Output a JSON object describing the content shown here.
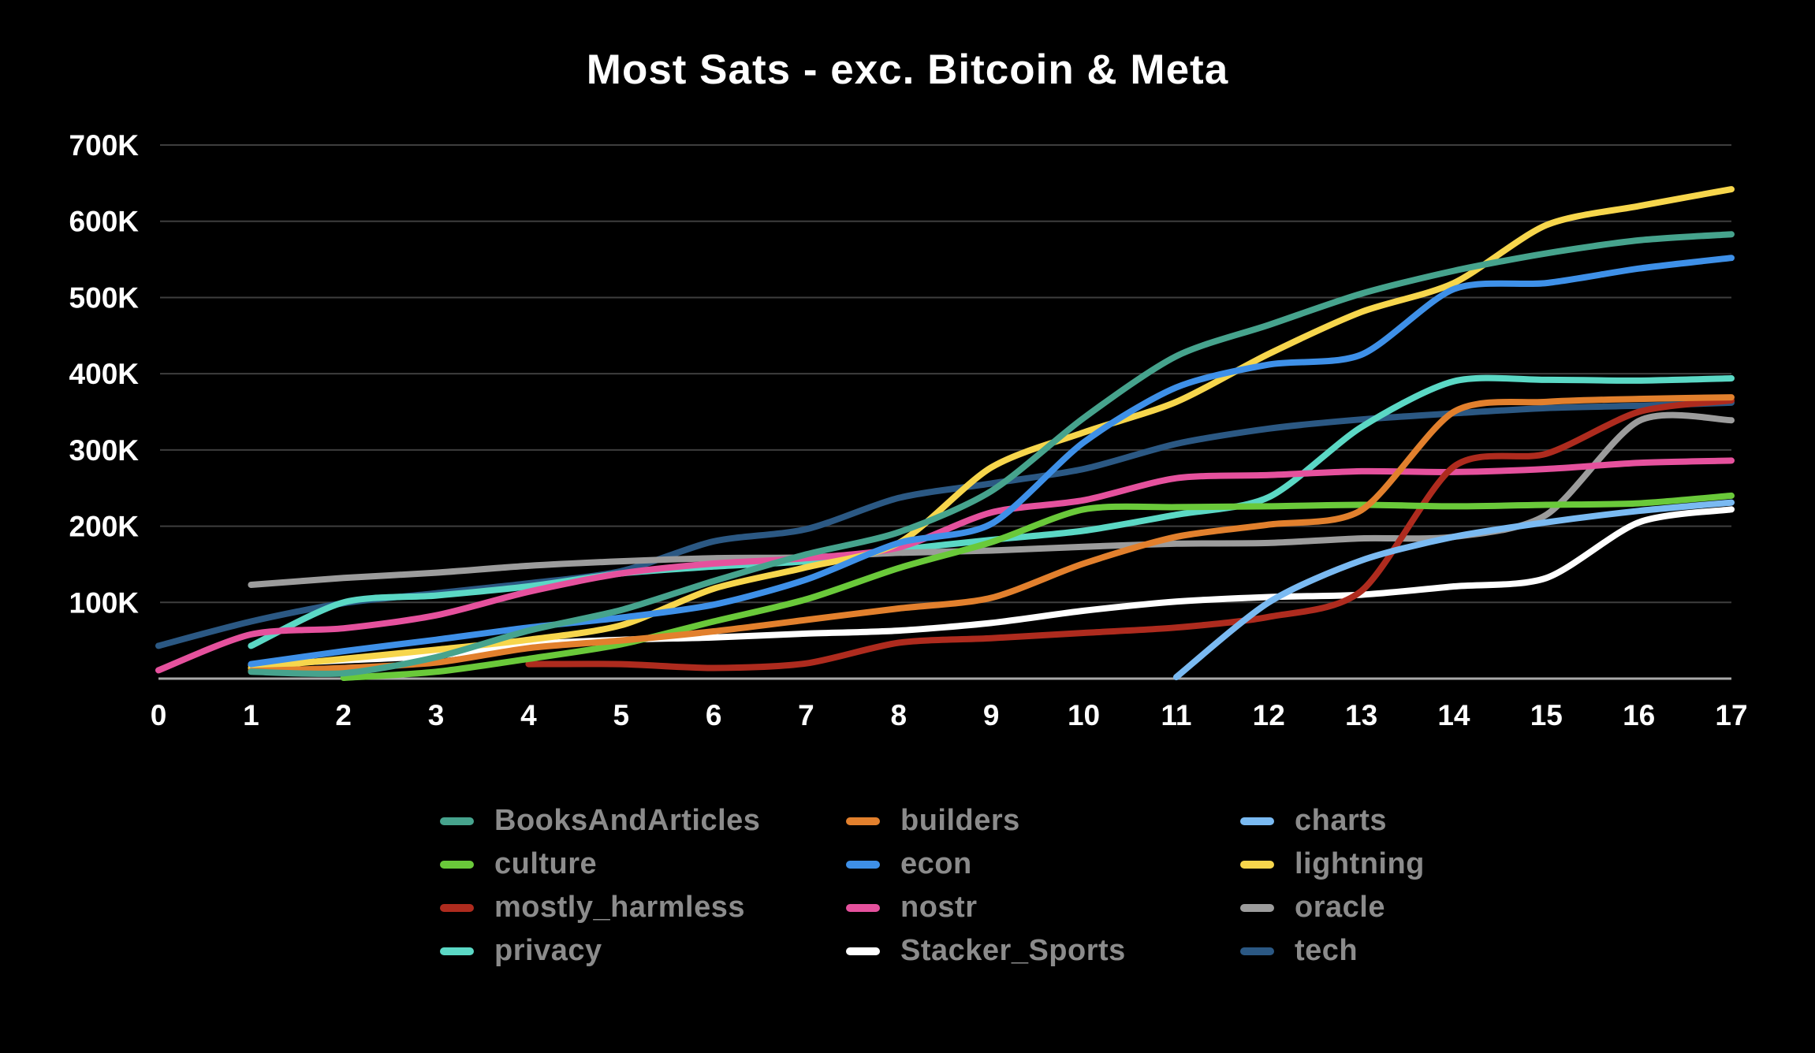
{
  "title": "Most Sats - exc. Bitcoin & Meta",
  "colors": {
    "background": "#000000",
    "grid_line": "#3E3E3E",
    "axis_line": "#A9A9A9",
    "tick_text": "#FFFFFF",
    "legend_text": "#8B8B8B"
  },
  "chart_data": {
    "type": "line",
    "title": "Most Sats - exc. Bitcoin & Meta",
    "xlabel": "",
    "ylabel": "",
    "x": [
      0,
      1,
      2,
      3,
      4,
      5,
      6,
      7,
      8,
      9,
      10,
      11,
      12,
      13,
      14,
      15,
      16,
      17
    ],
    "ylim": [
      0,
      700000
    ],
    "y_tick_labels": [
      "100K",
      "200K",
      "300K",
      "400K",
      "500K",
      "600K",
      "700K"
    ],
    "grid": true,
    "legend_position": "bottom",
    "series": [
      {
        "name": "BooksAndArticles",
        "color": "#46A38D",
        "values": [
          null,
          9000,
          7000,
          28000,
          63000,
          90000,
          128000,
          163000,
          192000,
          246000,
          342000,
          423000,
          464000,
          505000,
          535000,
          558000,
          575000,
          583000
        ]
      },
      {
        "name": "builders",
        "color": "#E2802D",
        "values": [
          null,
          10000,
          14000,
          21000,
          40000,
          50000,
          62000,
          77000,
          92000,
          106000,
          151000,
          186000,
          202000,
          221000,
          350000,
          363000,
          367000,
          369000
        ]
      },
      {
        "name": "charts",
        "color": "#7ABAF2",
        "values": [
          null,
          null,
          null,
          null,
          null,
          null,
          null,
          null,
          null,
          null,
          null,
          2000,
          100000,
          155000,
          186000,
          205000,
          220000,
          231000
        ]
      },
      {
        "name": "culture",
        "color": "#6AC93A",
        "values": [
          null,
          null,
          1000,
          9000,
          26000,
          45000,
          75000,
          104000,
          145000,
          179000,
          222000,
          225000,
          226000,
          228000,
          226000,
          228000,
          230000,
          240000
        ]
      },
      {
        "name": "econ",
        "color": "#3E90E8",
        "values": [
          null,
          19000,
          36000,
          51000,
          67000,
          80000,
          97000,
          130000,
          178000,
          203000,
          310000,
          382000,
          412000,
          425000,
          511000,
          519000,
          538000,
          552000
        ]
      },
      {
        "name": "lightning",
        "color": "#F7D64C",
        "values": [
          null,
          14000,
          26000,
          38000,
          51000,
          70000,
          118000,
          146000,
          178000,
          277000,
          323000,
          363000,
          426000,
          481000,
          519000,
          595000,
          620000,
          642000
        ]
      },
      {
        "name": "mostly_harmless",
        "color": "#AE2B1E",
        "values": [
          null,
          null,
          null,
          null,
          19000,
          19000,
          14000,
          20000,
          47000,
          53000,
          60000,
          67000,
          81000,
          115000,
          278000,
          295000,
          350000,
          365000
        ]
      },
      {
        "name": "nostr",
        "color": "#E5519D",
        "values": [
          11000,
          58000,
          66000,
          83000,
          114000,
          138000,
          151000,
          158000,
          172000,
          218000,
          234000,
          263000,
          267000,
          272000,
          271000,
          275000,
          283000,
          286000
        ]
      },
      {
        "name": "oracle",
        "color": "#9C9C9C",
        "values": [
          null,
          123000,
          132000,
          139000,
          148000,
          154000,
          158000,
          159000,
          165000,
          168000,
          173000,
          177000,
          178000,
          184000,
          186000,
          215000,
          338000,
          339000
        ]
      },
      {
        "name": "privacy",
        "color": "#5BD8C5",
        "values": [
          null,
          43000,
          100000,
          109000,
          121000,
          138000,
          147000,
          154000,
          169000,
          182000,
          194000,
          215000,
          238000,
          330000,
          390000,
          392000,
          391000,
          394000
        ]
      },
      {
        "name": "Stacker_Sports",
        "color": "#FFFFFF",
        "values": [
          null,
          18000,
          24000,
          30000,
          45000,
          51000,
          54000,
          59000,
          63000,
          73000,
          89000,
          101000,
          107000,
          110000,
          121000,
          132000,
          205000,
          222000
        ]
      },
      {
        "name": "tech",
        "color": "#2B5883",
        "values": [
          43000,
          75000,
          99000,
          112000,
          125000,
          141000,
          180000,
          196000,
          237000,
          256000,
          275000,
          308000,
          328000,
          340000,
          348000,
          355000,
          358000,
          362000
        ]
      }
    ]
  }
}
